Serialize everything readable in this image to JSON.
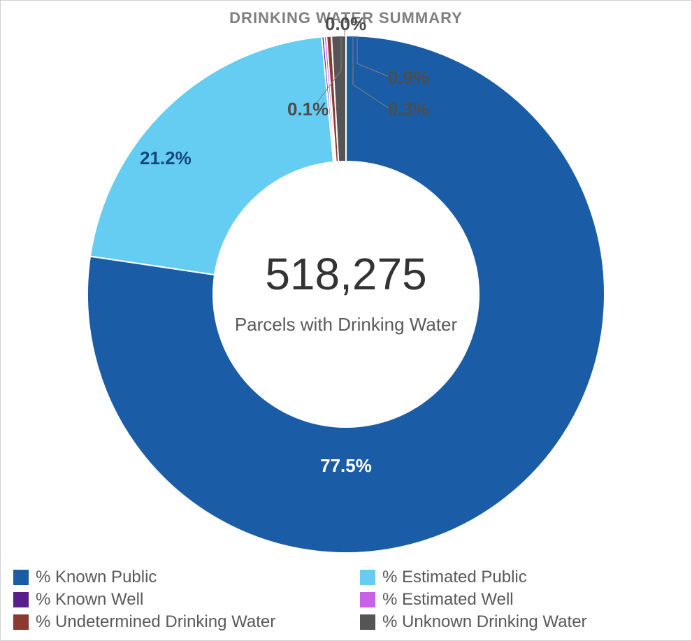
{
  "title": "DRINKING WATER SUMMARY",
  "chart": {
    "type": "donut",
    "background_color": "#ffffff",
    "outer_radius": 370,
    "inner_radius": 190,
    "start_angle_deg": 0,
    "center_value": "518,275",
    "center_value_fontsize": 64,
    "center_value_color": "#333333",
    "center_sub": "Parcels with Drinking Water",
    "center_sub_fontsize": 26,
    "center_sub_color": "#595959",
    "slices": [
      {
        "label": "% Known Public",
        "value": 77.5,
        "color": "#1a5da6",
        "display": "77.5%",
        "label_color": "#ffffff"
      },
      {
        "label": "% Estimated Public",
        "value": 21.2,
        "color": "#66cdf2",
        "display": "21.2%",
        "label_color": "#13487c"
      },
      {
        "label": "% Known Well",
        "value": 0.1,
        "color": "#5a1e8a",
        "display": "0.1%",
        "label_color": "#4d4d4d"
      },
      {
        "label": "% Estimated Well",
        "value": 0.0,
        "color": "#c960e8",
        "display": "0.0%",
        "label_color": "#4d4d4d"
      },
      {
        "label": "% Undetermined Drinking Water",
        "value": 0.3,
        "color": "#8a3a2f",
        "display": "0.3%",
        "label_color": "#4d4d4d"
      },
      {
        "label": "% Unknown Drinking Water",
        "value": 0.9,
        "color": "#555555",
        "display": "0.9%",
        "label_color": "#4d4d4d"
      }
    ],
    "label_fontsize": 26,
    "label_fontweight": "700"
  },
  "legend": {
    "fontsize": 24,
    "text_color": "#595959",
    "swatch_size": 22,
    "columns": 2
  }
}
